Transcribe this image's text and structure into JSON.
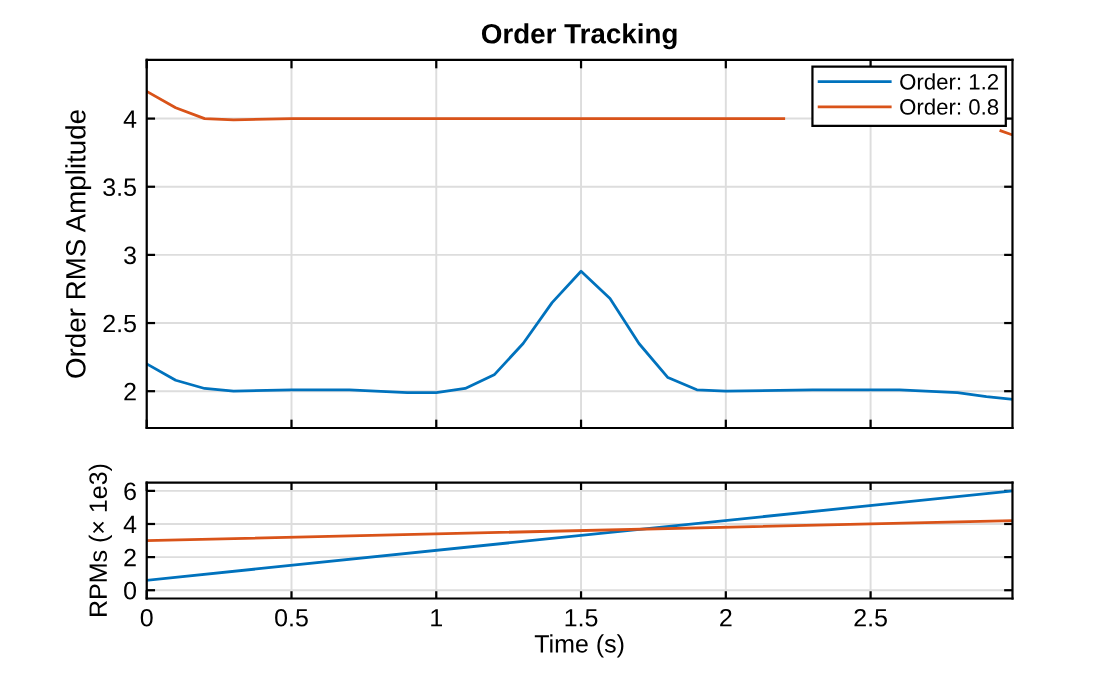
{
  "chart_data": [
    {
      "type": "line",
      "title": "Order Tracking",
      "ylabel": "Order RMS Amplitude",
      "xlim": [
        0,
        2.99
      ],
      "xticks": [
        0,
        0.5,
        1,
        1.5,
        2,
        2.5
      ],
      "ylim": [
        1.73,
        4.43
      ],
      "yticks": [
        2,
        2.5,
        3,
        3.5,
        4
      ],
      "grid": true,
      "legend": "top right",
      "tick_labels": "y",
      "series": [
        {
          "name": "Order: 1.2",
          "color": "#0072bd",
          "x": [
            0,
            0.1,
            0.2,
            0.3,
            0.5,
            0.7,
            0.9,
            1.0,
            1.1,
            1.2,
            1.3,
            1.4,
            1.5,
            1.6,
            1.7,
            1.8,
            1.9,
            2.0,
            2.3,
            2.6,
            2.8,
            2.9,
            2.99
          ],
          "values": [
            2.2,
            2.08,
            2.02,
            2.0,
            2.01,
            2.01,
            1.99,
            1.99,
            2.02,
            2.12,
            2.35,
            2.65,
            2.88,
            2.68,
            2.35,
            2.1,
            2.01,
            2.0,
            2.01,
            2.01,
            1.99,
            1.96,
            1.94
          ]
        },
        {
          "name": "Order: 0.8",
          "color": "#d95319",
          "x": [
            0,
            0.1,
            0.2,
            0.3,
            0.5,
            1.0,
            1.5,
            2.0,
            2.2,
            2.5,
            2.95,
            2.99
          ],
          "values": [
            4.2,
            4.08,
            4.0,
            3.99,
            4.0,
            4.0,
            4.0,
            4.0,
            4.0,
            null,
            3.91,
            3.88
          ]
        }
      ]
    },
    {
      "type": "line",
      "xlabel": "Time (s)",
      "ylabel": "RPMs (× 1e3)",
      "xlim": [
        0,
        2.99
      ],
      "xticks": [
        0,
        0.5,
        1,
        1.5,
        2,
        2.5
      ],
      "ylim": [
        -0.5,
        6.5
      ],
      "yticks": [
        0,
        2,
        4,
        6
      ],
      "grid": true,
      "series": [
        {
          "color": "#0072bd",
          "x": [
            0,
            2.99
          ],
          "values": [
            0.6,
            6.0
          ]
        },
        {
          "color": "#d95319",
          "x": [
            0,
            2.99
          ],
          "values": [
            3.0,
            4.2
          ]
        }
      ]
    }
  ]
}
